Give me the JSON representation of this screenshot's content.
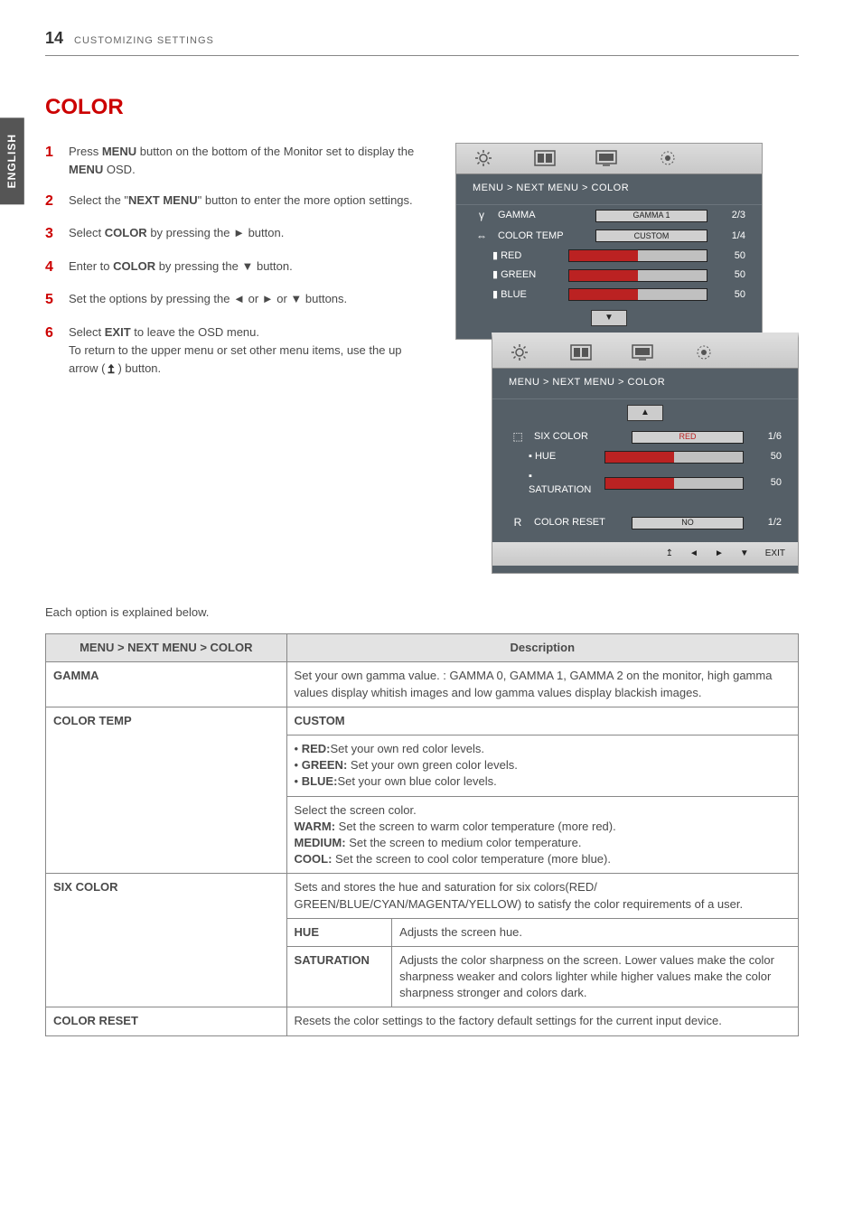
{
  "page": {
    "number": "14",
    "header": "CUSTOMIZING SETTINGS"
  },
  "side_tab": "ENGLISH",
  "section_title": "COLOR",
  "steps": [
    {
      "n": "1",
      "html": "Press <b>MENU</b> button on the bottom of the Monitor set to display the <b>MENU</b> OSD."
    },
    {
      "n": "2",
      "html": "Select the \"<b>NEXT MENU</b>\" button to enter the more option settings."
    },
    {
      "n": "3",
      "html": "Select <b>COLOR</b> by pressing the ► button."
    },
    {
      "n": "4",
      "html": "Enter to <b>COLOR</b> by pressing the ▼ button."
    },
    {
      "n": "5",
      "html": "Set the options by pressing the ◄ or ► or ▼ buttons."
    },
    {
      "n": "6",
      "html": "Select <b>EXIT</b> to leave the OSD menu.<br>To return to the upper menu or set other menu items, use the up arrow (<svg class='uparrow-ic' viewBox='0 0 16 16'><path d='M8 2 L12 7 L9 7 L9 12 L12 12 L12 14 L4 14 L4 12 L7 12 L7 7 L4 7 Z' fill='#333'/></svg>) button."
    }
  ],
  "explain_line": "Each option is explained below.",
  "osd": {
    "breadcrumb": "MENU  >  NEXT MENU  >  COLOR",
    "panel1": {
      "rows": [
        {
          "icon": "γ",
          "label": "GAMMA",
          "slot_type": "btn",
          "slot_text": "GAMMA 1",
          "val": "2/3"
        },
        {
          "icon": "⇔",
          "label": "COLOR TEMP",
          "slot_type": "btn",
          "slot_text": "CUSTOM",
          "val": "1/4"
        },
        {
          "icon": "",
          "sub": "▮ RED",
          "slot_type": "bar",
          "fill": 50,
          "val": "50"
        },
        {
          "icon": "",
          "sub": "▮ GREEN",
          "slot_type": "bar",
          "fill": 50,
          "val": "50"
        },
        {
          "icon": "",
          "sub": "▮ BLUE",
          "slot_type": "bar",
          "fill": 50,
          "val": "50"
        }
      ]
    },
    "panel2": {
      "rows_top": [
        {
          "icon": "⬚",
          "label": "SIX COLOR",
          "slot_type": "btn",
          "slot_text": "RED",
          "slot_red": true,
          "val": "1/6"
        },
        {
          "icon": "",
          "sub": "▪ HUE",
          "slot_type": "bar",
          "fill": 50,
          "val": "50"
        },
        {
          "icon": "",
          "sub": "▪ SATURATION",
          "slot_type": "bar",
          "fill": 50,
          "val": "50"
        }
      ],
      "rows_bottom": [
        {
          "icon": "R",
          "label": "COLOR RESET",
          "slot_type": "btn",
          "slot_text": "NO",
          "val": "1/2"
        }
      ],
      "footer": [
        "↥",
        "◄",
        "►",
        "▼",
        "EXIT"
      ]
    }
  },
  "colors": {
    "accent_red": "#c00",
    "osd_bg": "#555f67",
    "header_bg": "#e3e3e3",
    "border": "#888"
  },
  "table": {
    "header_left": "MENU > NEXT MENU > COLOR",
    "header_right": "Description",
    "rows": [
      {
        "name": "GAMMA",
        "desc": "Set your own gamma value. : GAMMA 0, GAMMA 1, GAMMA 2 on the monitor, high gamma values display whitish images and low gamma values display blackish images."
      },
      {
        "name": "COLOR TEMP",
        "custom": "CUSTOM",
        "desc_html": "• <b>RED:</b>Set your own red color levels.<br>• <b>GREEN:</b> Set your own green color levels.<br>• <b>BLUE:</b>Set your own blue color levels.",
        "desc2_html": "Select the screen color.<br><b>WARM:</b> Set the screen to warm color temperature (more red).<br><b>MEDIUM:</b> Set the screen to medium color temperature.<br><b>COOL:</b> Set the screen to cool color temperature (more blue)."
      },
      {
        "name": "SIX COLOR",
        "intro": "Sets and stores the hue and saturation for six colors(RED/ GREEN/BLUE/CYAN/MAGENTA/YELLOW) to satisfy the color requirements of a user.",
        "sub": [
          {
            "k": "HUE",
            "v": "Adjusts the screen hue."
          },
          {
            "k": "SATURATION",
            "v": "Adjusts the color sharpness on the screen. Lower values make the color sharpness weaker and colors lighter while higher values make the color sharpness stronger and colors dark."
          }
        ]
      },
      {
        "name": "COLOR RESET",
        "desc": "Resets the color settings to the factory default settings for the current input device."
      }
    ]
  }
}
